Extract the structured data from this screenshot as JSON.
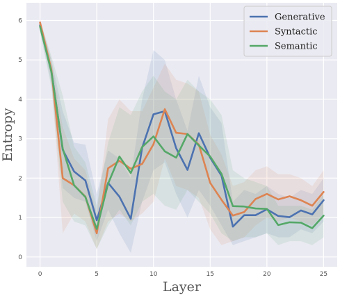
{
  "chart_data": {
    "type": "line",
    "xlabel": "Layer",
    "ylabel": "Entropy",
    "xlim": [
      -1.2,
      26.2
    ],
    "ylim": [
      -0.25,
      6.45
    ],
    "xticks": [
      0,
      5,
      10,
      15,
      20,
      25
    ],
    "yticks": [
      0,
      1,
      2,
      3,
      4,
      5,
      6
    ],
    "grid": true,
    "legend_position": "top-right",
    "x": [
      0,
      1,
      2,
      3,
      4,
      5,
      6,
      7,
      8,
      9,
      10,
      11,
      12,
      13,
      14,
      15,
      16,
      17,
      18,
      19,
      20,
      21,
      22,
      23,
      24,
      25
    ],
    "series": [
      {
        "name": "Generative",
        "color": "#4c72b0",
        "values": [
          5.88,
          4.72,
          2.72,
          2.17,
          1.94,
          0.93,
          1.88,
          1.53,
          0.97,
          2.77,
          3.62,
          3.7,
          2.76,
          2.21,
          3.14,
          2.52,
          2.06,
          0.77,
          1.06,
          1.06,
          1.21,
          1.04,
          1.01,
          1.18,
          1.08,
          1.44
        ],
        "band_low": [
          5.75,
          4.4,
          1.75,
          1.5,
          1.4,
          0.4,
          1.2,
          0.6,
          0.1,
          1.4,
          2.2,
          2.4,
          1.6,
          1.0,
          1.7,
          1.3,
          0.8,
          0.3,
          0.4,
          0.5,
          0.6,
          0.5,
          0.5,
          0.7,
          0.6,
          0.9
        ],
        "band_high": [
          6.0,
          5.0,
          3.7,
          2.9,
          2.85,
          1.6,
          2.7,
          2.5,
          2.0,
          4.0,
          5.25,
          5.0,
          4.0,
          3.2,
          4.6,
          3.8,
          3.4,
          1.4,
          1.7,
          1.6,
          1.8,
          1.6,
          1.5,
          1.7,
          1.6,
          2.0
        ]
      },
      {
        "name": "Syntactic",
        "color": "#dd8452",
        "values": [
          5.95,
          4.75,
          2.0,
          1.82,
          1.53,
          0.6,
          2.25,
          2.44,
          2.24,
          2.36,
          2.86,
          3.75,
          3.15,
          3.12,
          2.85,
          1.88,
          1.45,
          1.05,
          1.14,
          1.47,
          1.6,
          1.46,
          1.54,
          1.44,
          1.3,
          1.65
        ],
        "band_low": [
          5.85,
          4.5,
          0.6,
          1.1,
          0.9,
          0.2,
          0.9,
          1.1,
          0.9,
          1.1,
          1.4,
          2.5,
          1.8,
          1.7,
          1.5,
          0.7,
          0.3,
          0.4,
          0.5,
          0.8,
          1.0,
          0.9,
          1.0,
          0.9,
          0.8,
          1.1
        ],
        "band_high": [
          6.05,
          5.0,
          3.3,
          2.5,
          2.2,
          1.1,
          3.5,
          4.0,
          3.7,
          3.7,
          4.3,
          4.9,
          4.5,
          4.4,
          4.2,
          3.1,
          2.6,
          1.8,
          1.9,
          2.2,
          2.3,
          2.1,
          2.1,
          2.0,
          1.8,
          2.2
        ]
      },
      {
        "name": "Semantic",
        "color": "#55a868",
        "values": [
          5.85,
          4.7,
          2.75,
          1.82,
          1.52,
          0.71,
          1.86,
          2.55,
          2.13,
          2.79,
          3.06,
          2.68,
          2.52,
          3.12,
          2.83,
          2.55,
          2.11,
          1.29,
          1.28,
          1.23,
          1.22,
          0.81,
          0.88,
          0.87,
          0.73,
          1.05
        ],
        "band_low": [
          5.7,
          4.3,
          1.4,
          0.9,
          0.8,
          0.2,
          0.8,
          1.2,
          0.8,
          1.4,
          1.6,
          1.3,
          1.2,
          1.7,
          1.4,
          1.1,
          0.6,
          0.4,
          0.5,
          0.5,
          0.6,
          0.3,
          0.4,
          0.4,
          0.3,
          0.5
        ],
        "band_high": [
          6.0,
          5.1,
          4.1,
          2.8,
          2.4,
          1.3,
          2.9,
          3.8,
          3.6,
          4.2,
          4.6,
          4.2,
          4.0,
          4.5,
          4.2,
          4.0,
          3.6,
          2.2,
          2.0,
          1.9,
          1.8,
          1.3,
          1.3,
          1.3,
          1.2,
          1.6
        ]
      }
    ]
  }
}
